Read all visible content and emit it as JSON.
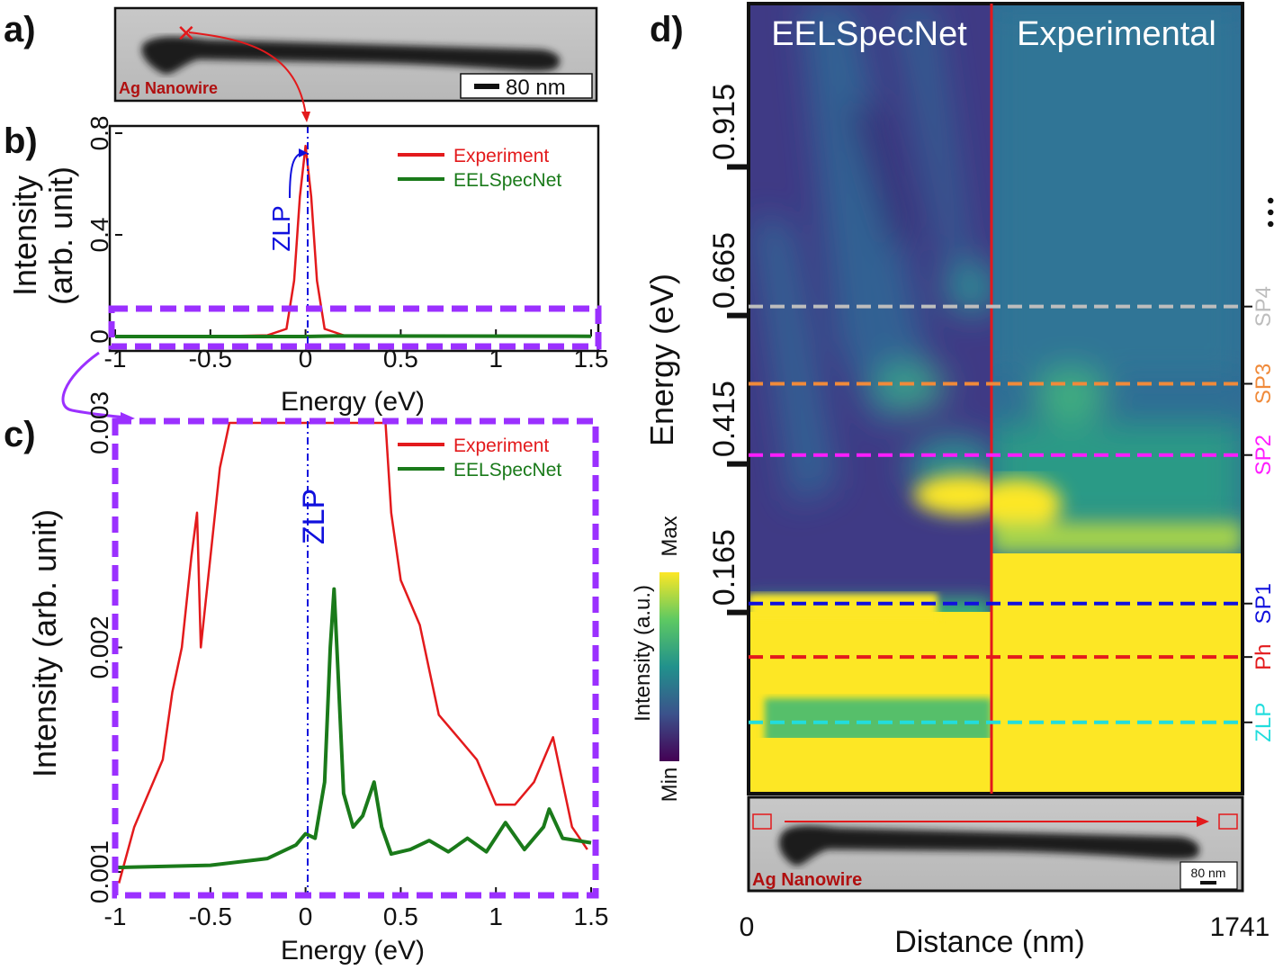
{
  "panel_labels": {
    "a": "a)",
    "b": "b)",
    "c": "c)",
    "d": "d)"
  },
  "panel_a": {
    "label": "Ag Nanowire",
    "scalebar": "80 nm"
  },
  "panel_b": {
    "ylabel_line1": "Intensity",
    "ylabel_line2": "(arb. unit)",
    "xlabel": "Energy (eV)",
    "annotation": "ZLP"
  },
  "panel_c": {
    "ylabel": "Intensity (arb. unit)",
    "xlabel": "Energy (eV)",
    "annotation": "ZLP"
  },
  "panel_d": {
    "left_title": "EELSpecNet",
    "right_title": "Experimental",
    "ylabel": "Energy (eV)",
    "xlabel": "Distance (nm)",
    "x_ticks": [
      "0",
      "1741"
    ],
    "colorbar": {
      "label": "Intensity (a.u.)",
      "max": "Max",
      "min": "Min",
      "colors": [
        "#440154",
        "#3b528b",
        "#21918c",
        "#5ec962",
        "#fde725"
      ]
    },
    "inset_label": "Ag Nanowire",
    "inset_scalebar": "80 nm",
    "ellipsis": "•••",
    "modes": [
      {
        "name": "SP4",
        "color": "#bdbdbd",
        "energy": 0.68
      },
      {
        "name": "SP3",
        "color": "#f08a3a",
        "energy": 0.55
      },
      {
        "name": "SP2",
        "color": "#ff1dff",
        "energy": 0.43
      },
      {
        "name": "SP1",
        "color": "#1010dd",
        "energy": 0.18
      },
      {
        "name": "Ph",
        "color": "#e31a1c",
        "energy": 0.09
      },
      {
        "name": "ZLP",
        "color": "#22dddd",
        "energy": -0.02
      }
    ]
  },
  "chart_data": [
    {
      "type": "line",
      "panel": "b",
      "xlim": [
        -1,
        1.5
      ],
      "ylim": [
        0,
        0.8
      ],
      "x_ticks": [
        "-1",
        "-0.5",
        "0",
        "0.5",
        "1",
        "1.5"
      ],
      "y_ticks": [
        "0",
        "0.4",
        "0.8"
      ],
      "legend_position": "top-right",
      "series": [
        {
          "name": "Experiment",
          "color": "#e31a1c",
          "x": [
            -1.0,
            -0.5,
            -0.2,
            -0.1,
            -0.06,
            -0.03,
            0.0,
            0.03,
            0.06,
            0.1,
            0.2,
            0.5,
            1.0,
            1.5
          ],
          "values": [
            0.0,
            0.0,
            0.005,
            0.03,
            0.22,
            0.55,
            0.75,
            0.55,
            0.22,
            0.03,
            0.005,
            0.0,
            0.0,
            0.0
          ]
        },
        {
          "name": "EELSpecNet",
          "color": "#1a7a1a",
          "x": [
            -1.0,
            0.0,
            0.15,
            1.5
          ],
          "values": [
            0.0,
            0.0,
            0.002,
            0.001
          ]
        }
      ]
    },
    {
      "type": "line",
      "panel": "c",
      "xlim": [
        -1,
        1.5
      ],
      "ylim": [
        0.0009,
        0.003
      ],
      "x_ticks": [
        "-1",
        "-0.5",
        "0",
        "0.5",
        "1",
        "1.5"
      ],
      "y_ticks": [
        "0.001",
        "0.002",
        "0.003"
      ],
      "legend_position": "top-right",
      "series": [
        {
          "name": "Experiment",
          "color": "#e31a1c",
          "x": [
            -0.98,
            -0.9,
            -0.85,
            -0.8,
            -0.75,
            -0.7,
            -0.65,
            -0.6,
            -0.57,
            -0.55,
            -0.5,
            -0.45,
            -0.4,
            -0.36,
            0.42,
            0.45,
            0.5,
            0.55,
            0.6,
            0.65,
            0.7,
            0.8,
            0.9,
            1.0,
            1.1,
            1.2,
            1.3,
            1.4,
            1.48
          ],
          "values": [
            0.00095,
            0.0012,
            0.0013,
            0.0014,
            0.0015,
            0.0018,
            0.002,
            0.0024,
            0.0026,
            0.002,
            0.0024,
            0.0028,
            0.003,
            0.003,
            0.003,
            0.0026,
            0.0023,
            0.0022,
            0.0021,
            0.0019,
            0.0017,
            0.0016,
            0.0015,
            0.0013,
            0.0013,
            0.0014,
            0.0016,
            0.0012,
            0.0011
          ]
        },
        {
          "name": "EELSpecNet",
          "color": "#1a7a1a",
          "x": [
            -1.0,
            -0.5,
            -0.2,
            -0.05,
            0.0,
            0.05,
            0.1,
            0.13,
            0.15,
            0.17,
            0.2,
            0.25,
            0.3,
            0.36,
            0.4,
            0.45,
            0.55,
            0.65,
            0.75,
            0.85,
            0.95,
            1.05,
            1.15,
            1.25,
            1.28,
            1.35,
            1.5
          ],
          "values": [
            0.00102,
            0.00103,
            0.00106,
            0.00112,
            0.00117,
            0.00115,
            0.0014,
            0.002,
            0.00226,
            0.0019,
            0.00135,
            0.0012,
            0.00125,
            0.0014,
            0.0012,
            0.00108,
            0.0011,
            0.00114,
            0.00109,
            0.00115,
            0.00109,
            0.00122,
            0.0011,
            0.0012,
            0.00128,
            0.00115,
            0.00113
          ]
        }
      ]
    },
    {
      "type": "heatmap",
      "panel": "d",
      "x_range": [
        0,
        1741
      ],
      "y_ticks": [
        "0.165",
        "0.415",
        "0.665",
        "0.915"
      ]
    }
  ]
}
